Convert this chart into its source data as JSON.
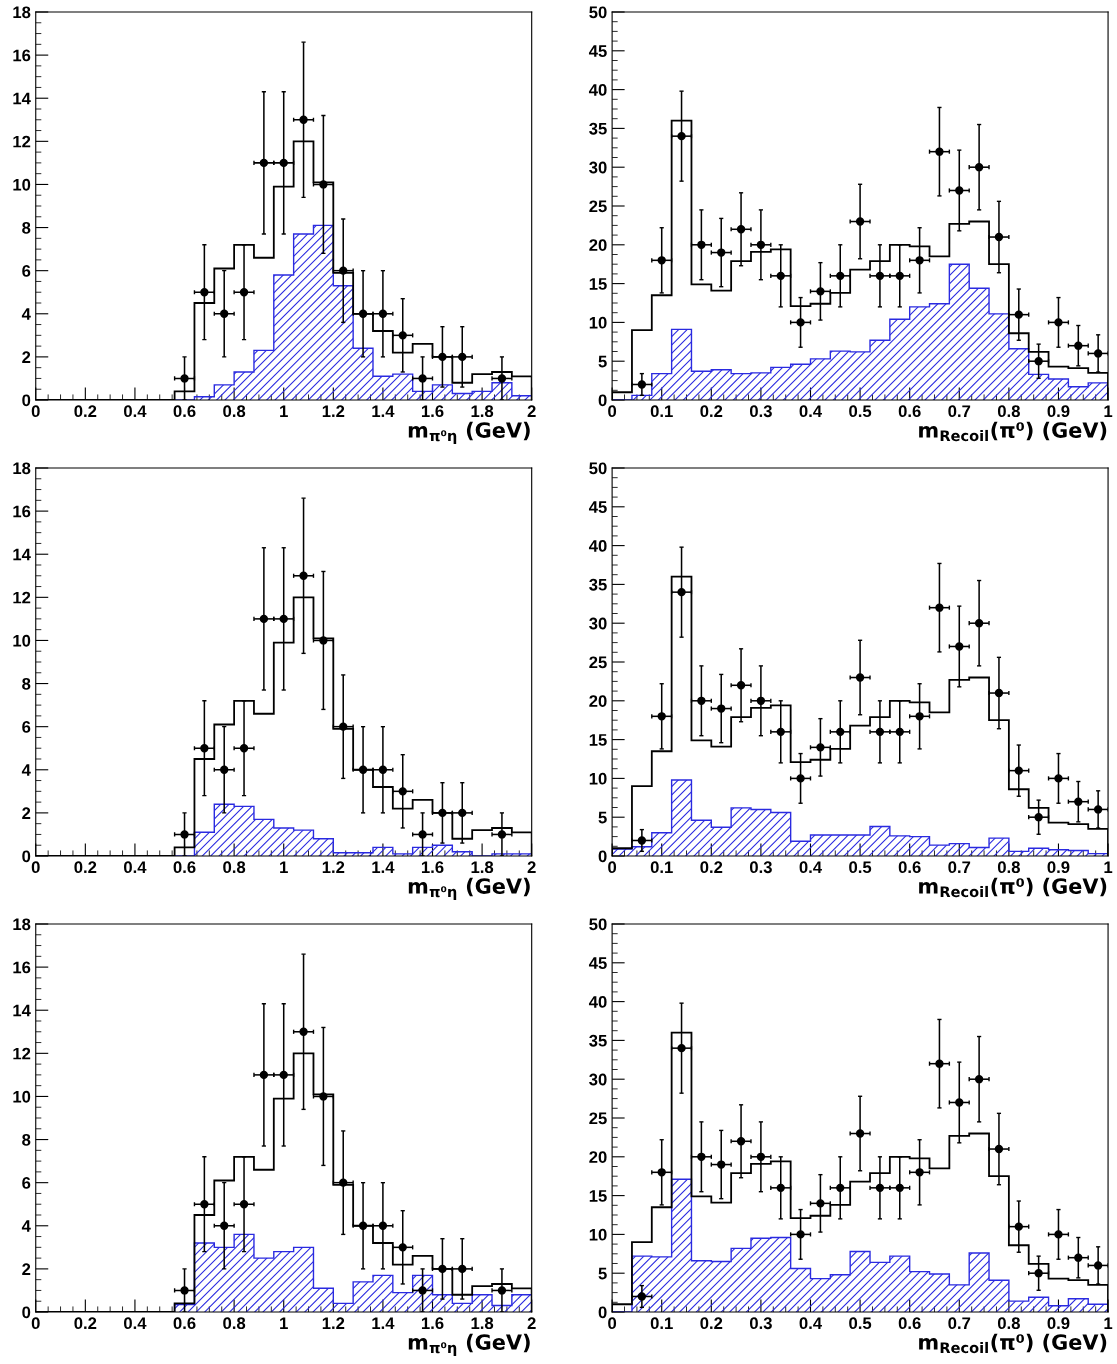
{
  "chart_data": [
    {
      "type": "histogram",
      "xlabel": "m$_{π⁰η}$ (GeV)",
      "bins": [
        0,
        0.08,
        0.16,
        0.24,
        0.32,
        0.4,
        0.48,
        0.56,
        0.64,
        0.72,
        0.8,
        0.88,
        0.96,
        1.04,
        1.12,
        1.2,
        1.28,
        1.36,
        1.44,
        1.52,
        1.6,
        1.68,
        1.76,
        1.84,
        1.92,
        2
      ],
      "xlim": [
        0,
        2
      ],
      "xticks": [
        0,
        0.2,
        0.4,
        0.6,
        0.8,
        1,
        1.2,
        1.4,
        1.6,
        1.8,
        2
      ],
      "ylim": [
        0,
        18
      ],
      "yticks": [
        0,
        2,
        4,
        6,
        8,
        10,
        12,
        14,
        16,
        18
      ],
      "grid": false,
      "color": "#000000",
      "values": [
        0,
        0,
        0,
        0,
        0,
        0,
        0,
        0.4,
        4.5,
        6.1,
        7.2,
        6.6,
        9.9,
        12.0,
        10.1,
        5.9,
        4.0,
        3.2,
        2.2,
        2.6,
        2.0,
        0.8,
        1.2,
        1.3,
        1.1
      ],
      "series": [
        {
          "type": "histogram",
          "color": "#2a2ae0",
          "values": [
            0,
            0,
            0,
            0,
            0,
            0,
            0,
            0,
            0.15,
            0.7,
            1.3,
            2.3,
            5.8,
            7.7,
            8.1,
            5.3,
            2.4,
            1.1,
            1.2,
            0.4,
            0.7,
            0.3,
            0.4,
            0.8,
            0.2
          ]
        },
        {
          "type": "scatter",
          "color": "#000000",
          "marker": "circle",
          "x": [
            0.6,
            0.68,
            0.76,
            0.84,
            0.92,
            1.0,
            1.08,
            1.16,
            1.24,
            1.32,
            1.4,
            1.48,
            1.56,
            1.64,
            1.72,
            1.88
          ],
          "values": [
            1,
            5,
            4,
            5,
            11,
            11,
            13,
            10,
            6,
            4,
            4,
            3,
            1,
            2,
            2,
            1
          ],
          "errors": [
            1,
            2.2,
            2,
            2.2,
            3.3,
            3.3,
            3.6,
            3.2,
            2.4,
            2,
            2,
            1.7,
            1,
            1.4,
            1.4,
            1
          ],
          "xerrors": [
            0.04,
            0.04,
            0.04,
            0.04,
            0.04,
            0.04,
            0.04,
            0.04,
            0.04,
            0.04,
            0.04,
            0.04,
            0.04,
            0.04,
            0.04,
            0.04
          ]
        }
      ]
    },
    {
      "type": "histogram",
      "xlabel": "m$_{Recoil}$(π⁰) (GeV)",
      "bins": [
        0,
        0.04,
        0.08,
        0.12,
        0.16,
        0.2,
        0.24,
        0.28,
        0.32,
        0.36,
        0.4,
        0.44,
        0.48,
        0.52,
        0.56,
        0.6,
        0.64,
        0.68,
        0.72,
        0.76,
        0.8,
        0.84,
        0.88,
        0.92,
        0.96,
        1
      ],
      "xlim": [
        0,
        1
      ],
      "xticks": [
        0,
        0.1,
        0.2,
        0.3,
        0.4,
        0.5,
        0.6,
        0.7,
        0.8,
        0.9,
        1
      ],
      "ylim": [
        0,
        50
      ],
      "yticks": [
        0,
        5,
        10,
        15,
        20,
        25,
        30,
        35,
        40,
        45,
        50
      ],
      "grid": false,
      "color": "#000000",
      "values": [
        1.0,
        9.0,
        13.5,
        36,
        14.9,
        14.1,
        17.9,
        19.1,
        19.4,
        12.1,
        12.4,
        13.8,
        16.8,
        17.9,
        20.0,
        19.8,
        18.5,
        22.7,
        23.0,
        17.5,
        8.6,
        6.2,
        4.3,
        4.1,
        3.5
      ],
      "series": [
        {
          "type": "histogram",
          "color": "#2a2ae0",
          "values": [
            0,
            0.6,
            3.4,
            9.1,
            3.7,
            3.9,
            3.4,
            3.5,
            4.2,
            4.6,
            5.3,
            6.3,
            6.2,
            7.7,
            10.4,
            12.0,
            12.4,
            17.5,
            14.4,
            11.1,
            6.6,
            3.3,
            2.7,
            1.7,
            2.2
          ]
        },
        {
          "type": "scatter",
          "color": "#000000",
          "marker": "circle",
          "x": [
            0.06,
            0.1,
            0.14,
            0.18,
            0.22,
            0.26,
            0.3,
            0.34,
            0.38,
            0.42,
            0.46,
            0.5,
            0.54,
            0.58,
            0.62,
            0.66,
            0.7,
            0.74,
            0.78,
            0.82,
            0.86,
            0.9,
            0.94,
            0.98
          ],
          "values": [
            2,
            18,
            34,
            20,
            19,
            22,
            20,
            16,
            10,
            14,
            16,
            23,
            16,
            16,
            18,
            32,
            27,
            30,
            21,
            11,
            5,
            10,
            7,
            6
          ],
          "errors": [
            1.4,
            4.2,
            5.8,
            4.5,
            4.4,
            4.7,
            4.5,
            4,
            3.2,
            3.7,
            4,
            4.8,
            4,
            4,
            4.2,
            5.7,
            5.2,
            5.5,
            4.6,
            3.3,
            2.2,
            3.2,
            2.6,
            2.4
          ],
          "xerrors": [
            0.02,
            0.02,
            0.02,
            0.02,
            0.02,
            0.02,
            0.02,
            0.02,
            0.02,
            0.02,
            0.02,
            0.02,
            0.02,
            0.02,
            0.02,
            0.02,
            0.02,
            0.02,
            0.02,
            0.02,
            0.02,
            0.02,
            0.02,
            0.02
          ]
        }
      ]
    },
    {
      "type": "histogram",
      "xlabel": "m$_{π⁰η}$ (GeV)",
      "bins": [
        0,
        0.08,
        0.16,
        0.24,
        0.32,
        0.4,
        0.48,
        0.56,
        0.64,
        0.72,
        0.8,
        0.88,
        0.96,
        1.04,
        1.12,
        1.2,
        1.28,
        1.36,
        1.44,
        1.52,
        1.6,
        1.68,
        1.76,
        1.84,
        1.92,
        2
      ],
      "xlim": [
        0,
        2
      ],
      "xticks": [
        0,
        0.2,
        0.4,
        0.6,
        0.8,
        1,
        1.2,
        1.4,
        1.6,
        1.8,
        2
      ],
      "ylim": [
        0,
        18
      ],
      "yticks": [
        0,
        2,
        4,
        6,
        8,
        10,
        12,
        14,
        16,
        18
      ],
      "grid": false,
      "color": "#000000",
      "values": [
        0,
        0,
        0,
        0,
        0,
        0,
        0,
        0.4,
        4.5,
        6.1,
        7.2,
        6.6,
        9.9,
        12.0,
        10.1,
        5.9,
        4.0,
        3.2,
        2.2,
        2.6,
        2.0,
        0.8,
        1.2,
        1.3,
        1.1
      ],
      "series": [
        {
          "type": "histogram",
          "color": "#2a2ae0",
          "values": [
            0,
            0,
            0,
            0,
            0,
            0,
            0,
            0,
            1.1,
            2.4,
            2.3,
            1.7,
            1.3,
            1.2,
            0.8,
            0.15,
            0.15,
            0.4,
            0.1,
            0.4,
            0.5,
            0.2,
            0,
            0.1,
            0.1
          ]
        },
        {
          "type": "scatter",
          "color": "#000000",
          "marker": "circle",
          "x": [
            0.6,
            0.68,
            0.76,
            0.84,
            0.92,
            1.0,
            1.08,
            1.16,
            1.24,
            1.32,
            1.4,
            1.48,
            1.56,
            1.64,
            1.72,
            1.88
          ],
          "values": [
            1,
            5,
            4,
            5,
            11,
            11,
            13,
            10,
            6,
            4,
            4,
            3,
            1,
            2,
            2,
            1
          ],
          "errors": [
            1,
            2.2,
            2,
            2.2,
            3.3,
            3.3,
            3.6,
            3.2,
            2.4,
            2,
            2,
            1.7,
            1,
            1.4,
            1.4,
            1
          ],
          "xerrors": [
            0.04,
            0.04,
            0.04,
            0.04,
            0.04,
            0.04,
            0.04,
            0.04,
            0.04,
            0.04,
            0.04,
            0.04,
            0.04,
            0.04,
            0.04,
            0.04
          ]
        }
      ]
    },
    {
      "type": "histogram",
      "xlabel": "m$_{Recoil}$(π⁰) (GeV)",
      "bins": [
        0,
        0.04,
        0.08,
        0.12,
        0.16,
        0.2,
        0.24,
        0.28,
        0.32,
        0.36,
        0.4,
        0.44,
        0.48,
        0.52,
        0.56,
        0.6,
        0.64,
        0.68,
        0.72,
        0.76,
        0.8,
        0.84,
        0.88,
        0.92,
        0.96,
        1
      ],
      "xlim": [
        0,
        1
      ],
      "xticks": [
        0,
        0.1,
        0.2,
        0.3,
        0.4,
        0.5,
        0.6,
        0.7,
        0.8,
        0.9,
        1
      ],
      "ylim": [
        0,
        50
      ],
      "yticks": [
        0,
        5,
        10,
        15,
        20,
        25,
        30,
        35,
        40,
        45,
        50
      ],
      "grid": false,
      "color": "#000000",
      "values": [
        1.0,
        9.0,
        13.5,
        36,
        14.9,
        14.1,
        17.9,
        19.1,
        19.4,
        12.1,
        12.4,
        13.8,
        16.8,
        17.9,
        20.0,
        19.8,
        18.5,
        22.7,
        23.0,
        17.5,
        8.6,
        6.2,
        4.3,
        4.1,
        3.5
      ],
      "series": [
        {
          "type": "histogram",
          "color": "#2a2ae0",
          "values": [
            0.9,
            1.2,
            3.0,
            9.8,
            4.6,
            3.7,
            6.2,
            6.0,
            5.6,
            1.9,
            2.7,
            2.7,
            2.7,
            3.8,
            2.6,
            2.5,
            1.4,
            1.6,
            1.1,
            2.3,
            0.6,
            1.0,
            0.8,
            0.7,
            0.3
          ]
        },
        {
          "type": "scatter",
          "color": "#000000",
          "marker": "circle",
          "x": [
            0.06,
            0.1,
            0.14,
            0.18,
            0.22,
            0.26,
            0.3,
            0.34,
            0.38,
            0.42,
            0.46,
            0.5,
            0.54,
            0.58,
            0.62,
            0.66,
            0.7,
            0.74,
            0.78,
            0.82,
            0.86,
            0.9,
            0.94,
            0.98
          ],
          "values": [
            2,
            18,
            34,
            20,
            19,
            22,
            20,
            16,
            10,
            14,
            16,
            23,
            16,
            16,
            18,
            32,
            27,
            30,
            21,
            11,
            5,
            10,
            7,
            6
          ],
          "errors": [
            1.4,
            4.2,
            5.8,
            4.5,
            4.4,
            4.7,
            4.5,
            4,
            3.2,
            3.7,
            4,
            4.8,
            4,
            4,
            4.2,
            5.7,
            5.2,
            5.5,
            4.6,
            3.3,
            2.2,
            3.2,
            2.6,
            2.4
          ],
          "xerrors": [
            0.02,
            0.02,
            0.02,
            0.02,
            0.02,
            0.02,
            0.02,
            0.02,
            0.02,
            0.02,
            0.02,
            0.02,
            0.02,
            0.02,
            0.02,
            0.02,
            0.02,
            0.02,
            0.02,
            0.02,
            0.02,
            0.02,
            0.02,
            0.02
          ]
        }
      ]
    },
    {
      "type": "histogram",
      "xlabel": "m$_{π⁰η}$ (GeV)",
      "bins": [
        0,
        0.08,
        0.16,
        0.24,
        0.32,
        0.4,
        0.48,
        0.56,
        0.64,
        0.72,
        0.8,
        0.88,
        0.96,
        1.04,
        1.12,
        1.2,
        1.28,
        1.36,
        1.44,
        1.52,
        1.6,
        1.68,
        1.76,
        1.84,
        1.92,
        2
      ],
      "xlim": [
        0,
        2
      ],
      "xticks": [
        0,
        0.2,
        0.4,
        0.6,
        0.8,
        1,
        1.2,
        1.4,
        1.6,
        1.8,
        2
      ],
      "ylim": [
        0,
        18
      ],
      "yticks": [
        0,
        2,
        4,
        6,
        8,
        10,
        12,
        14,
        16,
        18
      ],
      "grid": false,
      "color": "#000000",
      "values": [
        0,
        0,
        0,
        0,
        0,
        0,
        0,
        0.4,
        4.5,
        6.1,
        7.2,
        6.6,
        9.9,
        12.0,
        10.1,
        5.9,
        4.0,
        3.2,
        2.2,
        2.6,
        2.0,
        0.8,
        1.2,
        1.3,
        1.1
      ],
      "series": [
        {
          "type": "histogram",
          "color": "#2a2ae0",
          "values": [
            0,
            0,
            0,
            0,
            0,
            0,
            0,
            0.35,
            3.2,
            3.0,
            3.6,
            2.5,
            2.8,
            3.0,
            1.1,
            0.4,
            1.4,
            1.7,
            0.9,
            1.7,
            0.8,
            0.4,
            0.8,
            0.3,
            0.8
          ]
        },
        {
          "type": "scatter",
          "color": "#000000",
          "marker": "circle",
          "x": [
            0.6,
            0.68,
            0.76,
            0.84,
            0.92,
            1.0,
            1.08,
            1.16,
            1.24,
            1.32,
            1.4,
            1.48,
            1.56,
            1.64,
            1.72,
            1.88
          ],
          "values": [
            1,
            5,
            4,
            5,
            11,
            11,
            13,
            10,
            6,
            4,
            4,
            3,
            1,
            2,
            2,
            1
          ],
          "errors": [
            1,
            2.2,
            2,
            2.2,
            3.3,
            3.3,
            3.6,
            3.2,
            2.4,
            2,
            2,
            1.7,
            1,
            1.4,
            1.4,
            1
          ],
          "xerrors": [
            0.04,
            0.04,
            0.04,
            0.04,
            0.04,
            0.04,
            0.04,
            0.04,
            0.04,
            0.04,
            0.04,
            0.04,
            0.04,
            0.04,
            0.04,
            0.04
          ]
        }
      ]
    },
    {
      "type": "histogram",
      "xlabel": "m$_{Recoil}$(π⁰) (GeV)",
      "bins": [
        0,
        0.04,
        0.08,
        0.12,
        0.16,
        0.2,
        0.24,
        0.28,
        0.32,
        0.36,
        0.4,
        0.44,
        0.48,
        0.52,
        0.56,
        0.6,
        0.64,
        0.68,
        0.72,
        0.76,
        0.8,
        0.84,
        0.88,
        0.92,
        0.96,
        1
      ],
      "xlim": [
        0,
        1
      ],
      "xticks": [
        0,
        0.1,
        0.2,
        0.3,
        0.4,
        0.5,
        0.6,
        0.7,
        0.8,
        0.9,
        1
      ],
      "ylim": [
        0,
        50
      ],
      "yticks": [
        0,
        5,
        10,
        15,
        20,
        25,
        30,
        35,
        40,
        45,
        50
      ],
      "grid": false,
      "color": "#000000",
      "values": [
        1.0,
        9.0,
        13.5,
        36,
        14.9,
        14.1,
        17.9,
        19.1,
        19.4,
        12.1,
        12.4,
        13.8,
        16.8,
        17.9,
        20.0,
        19.8,
        18.5,
        22.7,
        23.0,
        17.5,
        8.6,
        6.2,
        4.3,
        4.1,
        3.5
      ],
      "series": [
        {
          "type": "histogram",
          "color": "#2a2ae0",
          "values": [
            0,
            7.2,
            7.1,
            17.1,
            6.6,
            6.5,
            8.2,
            9.5,
            9.6,
            5.6,
            4.3,
            4.8,
            7.8,
            6.4,
            7.2,
            5.2,
            4.9,
            3.5,
            7.6,
            4.1,
            1.4,
            1.9,
            0.8,
            1.7,
            1.0
          ]
        },
        {
          "type": "scatter",
          "color": "#000000",
          "marker": "circle",
          "x": [
            0.06,
            0.1,
            0.14,
            0.18,
            0.22,
            0.26,
            0.3,
            0.34,
            0.38,
            0.42,
            0.46,
            0.5,
            0.54,
            0.58,
            0.62,
            0.66,
            0.7,
            0.74,
            0.78,
            0.82,
            0.86,
            0.9,
            0.94,
            0.98
          ],
          "values": [
            2,
            18,
            34,
            20,
            19,
            22,
            20,
            16,
            10,
            14,
            16,
            23,
            16,
            16,
            18,
            32,
            27,
            30,
            21,
            11,
            5,
            10,
            7,
            6
          ],
          "errors": [
            1.4,
            4.2,
            5.8,
            4.5,
            4.4,
            4.7,
            4.5,
            4,
            3.2,
            3.7,
            4,
            4.8,
            4,
            4,
            4.2,
            5.7,
            5.2,
            5.5,
            4.6,
            3.3,
            2.2,
            3.2,
            2.6,
            2.4
          ],
          "xerrors": [
            0.02,
            0.02,
            0.02,
            0.02,
            0.02,
            0.02,
            0.02,
            0.02,
            0.02,
            0.02,
            0.02,
            0.02,
            0.02,
            0.02,
            0.02,
            0.02,
            0.02,
            0.02,
            0.02,
            0.02,
            0.02,
            0.02,
            0.02,
            0.02
          ]
        }
      ]
    }
  ]
}
